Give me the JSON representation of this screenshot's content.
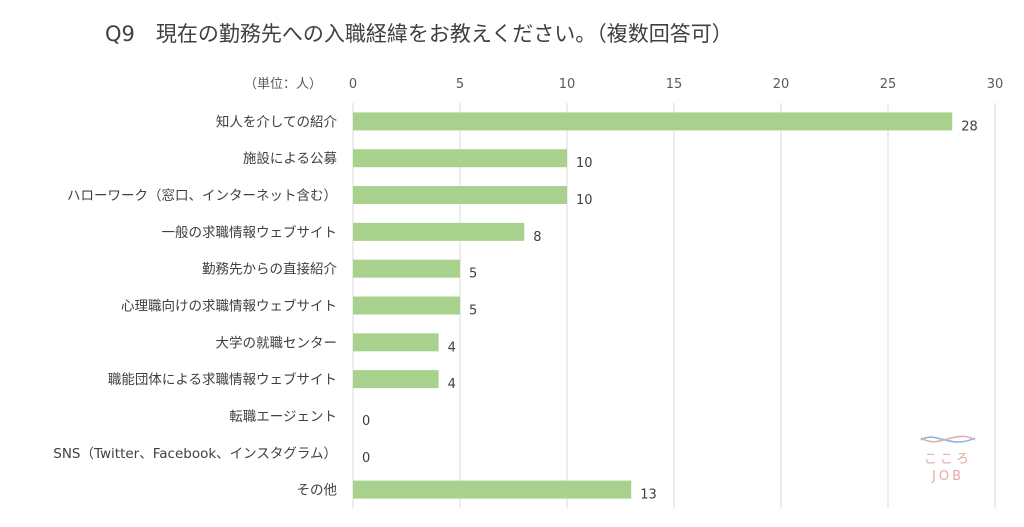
{
  "chart_data": {
    "type": "bar",
    "orientation": "horizontal",
    "title": "Q9　現在の勤務先への入職経緯をお教えください。（複数回答可）",
    "unit_label": "（単位：人）",
    "xlim": [
      0,
      30
    ],
    "ticks": [
      0,
      5,
      10,
      15,
      20,
      25,
      30
    ],
    "grid": true,
    "categories": [
      "知人を介しての紹介",
      "施設による公募",
      "ハローワーク（窓口、インターネット含む）",
      "一般の求職情報ウェブサイト",
      "勤務先からの直接紹介",
      "心理職向けの求職情報ウェブサイト",
      "大学の就職センター",
      "職能団体による求職情報ウェブサイト",
      "転職エージェント",
      "SNS（Twitter、Facebook、インスタグラム）",
      "その他"
    ],
    "values": [
      28,
      10,
      10,
      8,
      5,
      5,
      4,
      4,
      0,
      0,
      13
    ],
    "bar_color": "#a9d18e"
  },
  "logo": {
    "line1": "こころ",
    "line2": "JOB",
    "colors": [
      "#7fb8d8",
      "#e6a8a8"
    ]
  }
}
